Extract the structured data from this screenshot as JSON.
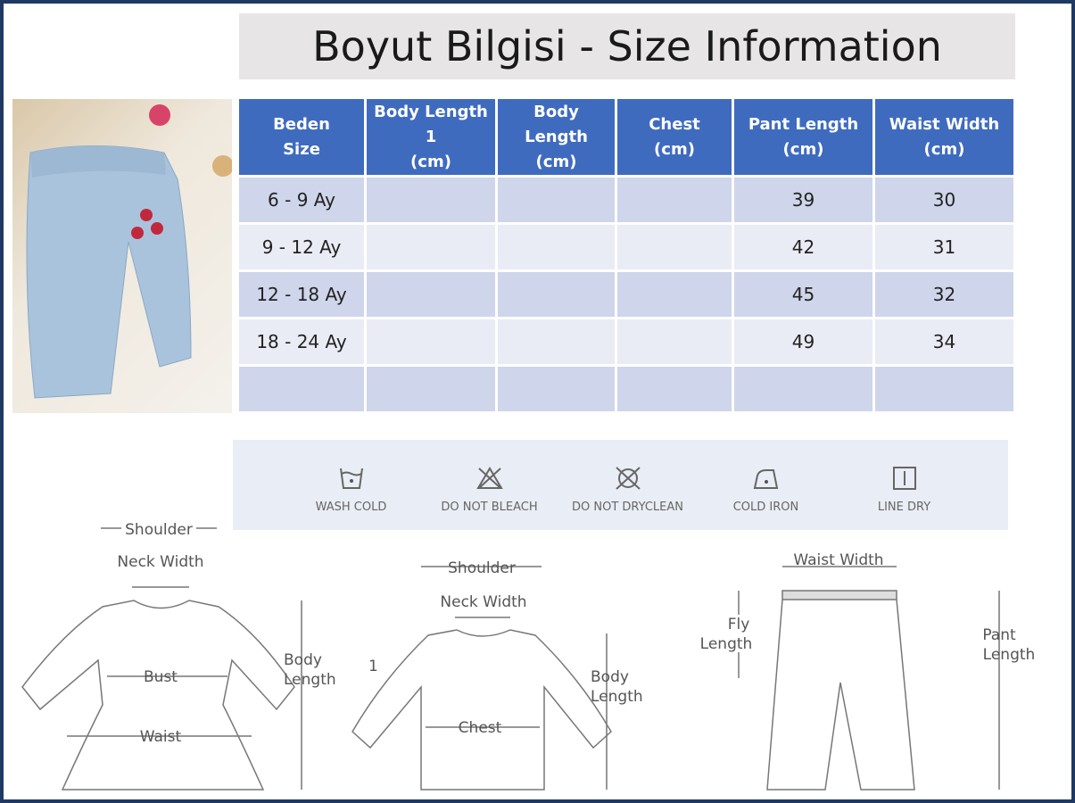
{
  "title": "Boyut Bilgisi - Size Information",
  "table": {
    "headers": [
      [
        "Beden",
        "Size"
      ],
      [
        "Body Length 1",
        "(cm)"
      ],
      [
        "Body Length",
        "(cm)"
      ],
      [
        "Chest",
        "(cm)"
      ],
      [
        "Pant Length",
        "(cm)"
      ],
      [
        "Waist Width",
        "(cm)"
      ]
    ],
    "rows": [
      [
        "6 - 9 Ay",
        "",
        "",
        "",
        "39",
        "30"
      ],
      [
        "9 - 12 Ay",
        "",
        "",
        "",
        "42",
        "31"
      ],
      [
        "12 - 18 Ay",
        "",
        "",
        "",
        "45",
        "32"
      ],
      [
        "18 - 24 Ay",
        "",
        "",
        "",
        "49",
        "34"
      ],
      [
        "",
        "",
        "",
        "",
        "",
        ""
      ]
    ]
  },
  "care": [
    {
      "icon": "wash-cold-icon",
      "label": "WASH COLD"
    },
    {
      "icon": "do-not-bleach-icon",
      "label": "DO NOT BLEACH"
    },
    {
      "icon": "do-not-dryclean-icon",
      "label": "DO NOT DRYCLEAN"
    },
    {
      "icon": "cold-iron-icon",
      "label": "COLD IRON"
    },
    {
      "icon": "line-dry-icon",
      "label": "LINE DRY"
    }
  ],
  "diagrams": {
    "dress": {
      "shoulder": "Shoulder",
      "neck": "Neck Width",
      "bust": "Bust",
      "waist": "Waist",
      "body1": "Body",
      "body2": "Length"
    },
    "shirt": {
      "shoulder": "Shoulder",
      "neck": "Neck Width",
      "chest": "Chest",
      "body1": "Body",
      "body2": "Length",
      "marker": "1"
    },
    "pants": {
      "waist": "Waist Width",
      "fly1": "Fly",
      "fly2": "Length",
      "pant1": "Pant",
      "pant2": "Length"
    }
  },
  "colors": {
    "header": "#3f6bbf",
    "row_odd": "#cfd5ea",
    "row_even": "#e9ebf5",
    "frame": "#1f3864"
  }
}
